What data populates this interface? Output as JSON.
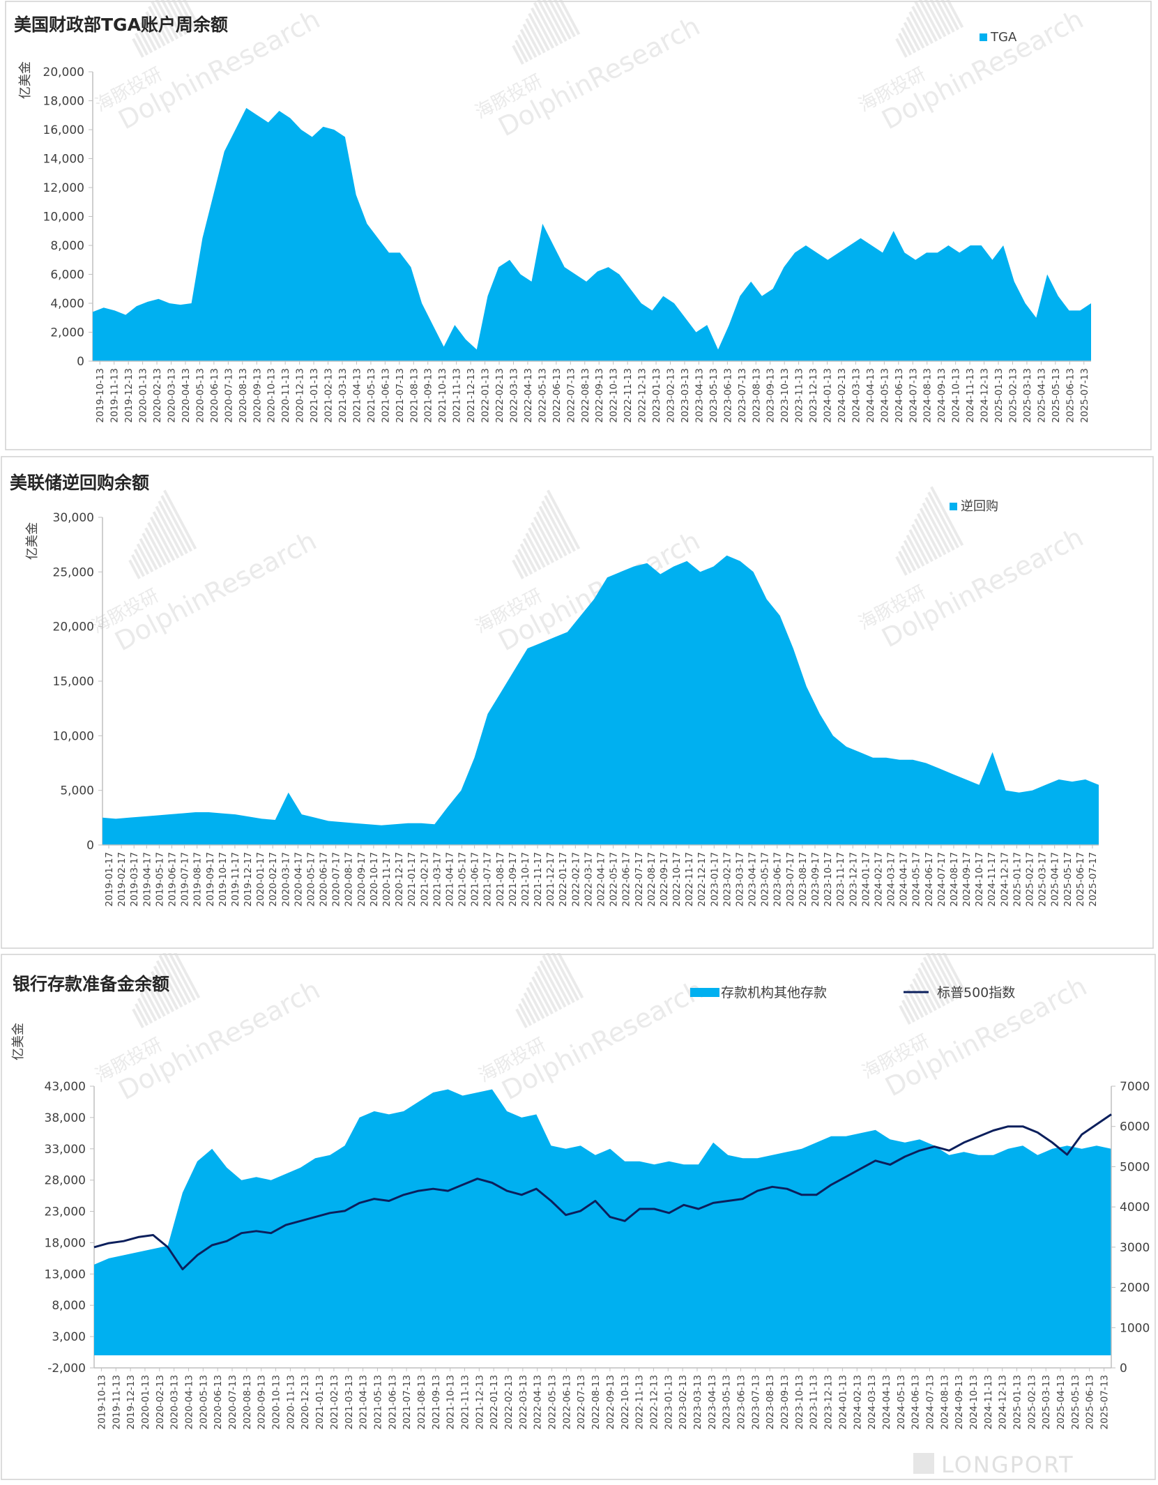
{
  "colors": {
    "fill": "#00B0F0",
    "line": "#0B1F5C",
    "axis": "#bfbfbf",
    "text": "#404040",
    "title": "#262626",
    "watermark": "#d9d9d9"
  },
  "watermark": {
    "cn": "海豚投研",
    "en": "DolphinResearch",
    "footer": "LONGPORT"
  },
  "chart_data": [
    {
      "type": "area",
      "title": "美国财政部TGA账户周余额",
      "ylabel": "亿美金",
      "legend": [
        "TGA"
      ],
      "legend_position": "top-right",
      "ylim": [
        0,
        20000
      ],
      "yticks": [
        0,
        2000,
        4000,
        6000,
        8000,
        10000,
        12000,
        14000,
        16000,
        18000,
        20000
      ],
      "ytick_labels": [
        "0",
        "2,000",
        "4,000",
        "6,000",
        "8,000",
        "10,000",
        "12,000",
        "14,000",
        "16,000",
        "18,000",
        "20,000"
      ],
      "xtick_labels": [
        "2019-10-13",
        "2019-11-13",
        "2019-12-13",
        "2020-01-13",
        "2020-02-13",
        "2020-03-13",
        "2020-04-13",
        "2020-05-13",
        "2020-06-13",
        "2020-07-13",
        "2020-08-13",
        "2020-09-13",
        "2020-10-13",
        "2020-11-13",
        "2020-12-13",
        "2021-01-13",
        "2021-02-13",
        "2021-03-13",
        "2021-04-13",
        "2021-05-13",
        "2021-06-13",
        "2021-07-13",
        "2021-08-13",
        "2021-09-13",
        "2021-10-13",
        "2021-11-13",
        "2021-12-13",
        "2022-01-13",
        "2022-02-13",
        "2022-03-13",
        "2022-04-13",
        "2022-05-13",
        "2022-06-13",
        "2022-07-13",
        "2022-08-13",
        "2022-09-13",
        "2022-10-13",
        "2022-11-13",
        "2022-12-13",
        "2023-01-13",
        "2023-02-13",
        "2023-03-13",
        "2023-04-13",
        "2023-05-13",
        "2023-06-13",
        "2023-07-13",
        "2023-08-13",
        "2023-09-13",
        "2023-10-13",
        "2023-11-13",
        "2023-12-13",
        "2024-01-13",
        "2024-02-13",
        "2024-03-13",
        "2024-04-13",
        "2024-05-13",
        "2024-06-13",
        "2024-07-13",
        "2024-08-13",
        "2024-09-13",
        "2024-10-13",
        "2024-11-13",
        "2024-12-13",
        "2025-01-13",
        "2025-02-13",
        "2025-03-13",
        "2025-04-13",
        "2025-05-13",
        "2025-06-13",
        "2025-07-13"
      ],
      "series": [
        {
          "name": "TGA",
          "values": [
            3400,
            3700,
            3500,
            3200,
            3800,
            4100,
            4300,
            4000,
            3900,
            4000,
            8500,
            11500,
            14500,
            16000,
            17500,
            17000,
            16500,
            17300,
            16800,
            16000,
            15500,
            16200,
            16000,
            15500,
            11500,
            9500,
            8500,
            7500,
            7500,
            6500,
            4000,
            2500,
            1000,
            2500,
            1500,
            800,
            4500,
            6500,
            7000,
            6000,
            5500,
            9500,
            8000,
            6500,
            6000,
            5500,
            6200,
            6500,
            6000,
            5000,
            4000,
            3500,
            4500,
            4000,
            3000,
            2000,
            2500,
            800,
            2500,
            4500,
            5500,
            4500,
            5000,
            6500,
            7500,
            8000,
            7500,
            7000,
            7500,
            8000,
            8500,
            8000,
            7500,
            9000,
            7500,
            7000,
            7500,
            7500,
            8000,
            7500,
            8000,
            8000,
            7000,
            8000,
            5500,
            4000,
            3000,
            6000,
            4500,
            3500,
            3500,
            4000
          ]
        }
      ]
    },
    {
      "type": "area",
      "title": "美联储逆回购余额",
      "ylabel": "亿美金",
      "legend": [
        "逆回购"
      ],
      "legend_position": "top-right",
      "ylim": [
        0,
        30000
      ],
      "yticks": [
        0,
        5000,
        10000,
        15000,
        20000,
        25000,
        30000
      ],
      "ytick_labels": [
        "0",
        "5,000",
        "10,000",
        "15,000",
        "20,000",
        "25,000",
        "30,000"
      ],
      "xtick_labels": [
        "2019-01-17",
        "2019-02-17",
        "2019-03-17",
        "2019-04-17",
        "2019-05-17",
        "2019-06-17",
        "2019-07-17",
        "2019-08-17",
        "2019-09-17",
        "2019-10-17",
        "2019-11-17",
        "2019-12-17",
        "2020-01-17",
        "2020-02-17",
        "2020-03-17",
        "2020-04-17",
        "2020-05-17",
        "2020-06-17",
        "2020-07-17",
        "2020-08-17",
        "2020-09-17",
        "2020-10-17",
        "2020-11-17",
        "2020-12-17",
        "2021-01-17",
        "2021-02-17",
        "2021-03-17",
        "2021-04-17",
        "2021-05-17",
        "2021-06-17",
        "2021-07-17",
        "2021-08-17",
        "2021-09-17",
        "2021-10-17",
        "2021-11-17",
        "2021-12-17",
        "2022-01-17",
        "2022-02-17",
        "2022-03-17",
        "2022-04-17",
        "2022-05-17",
        "2022-06-17",
        "2022-07-17",
        "2022-08-17",
        "2022-09-17",
        "2022-10-17",
        "2022-11-17",
        "2022-12-17",
        "2023-01-17",
        "2023-02-17",
        "2023-03-17",
        "2023-04-17",
        "2023-05-17",
        "2023-06-17",
        "2023-07-17",
        "2023-08-17",
        "2023-09-17",
        "2023-10-17",
        "2023-11-17",
        "2023-12-17",
        "2024-01-17",
        "2024-02-17",
        "2024-03-17",
        "2024-04-17",
        "2024-05-17",
        "2024-06-17",
        "2024-07-17",
        "2024-08-17",
        "2024-09-17",
        "2024-10-17",
        "2024-11-17",
        "2024-12-17",
        "2025-01-17",
        "2025-02-17",
        "2025-03-17",
        "2025-04-17",
        "2025-05-17",
        "2025-06-17",
        "2025-07-17"
      ],
      "series": [
        {
          "name": "逆回购",
          "values": [
            2500,
            2400,
            2500,
            2600,
            2700,
            2800,
            2900,
            3000,
            3000,
            2900,
            2800,
            2600,
            2400,
            2300,
            4800,
            2800,
            2500,
            2200,
            2100,
            2000,
            1900,
            1800,
            1900,
            2000,
            2000,
            1900,
            3500,
            5000,
            8000,
            12000,
            14000,
            16000,
            18000,
            18500,
            19000,
            19500,
            21000,
            22500,
            24500,
            25000,
            25500,
            25800,
            24800,
            25500,
            26000,
            25000,
            25500,
            26500,
            26000,
            25000,
            22500,
            21000,
            18000,
            14500,
            12000,
            10000,
            9000,
            8500,
            8000,
            8000,
            7800,
            7800,
            7500,
            7000,
            6500,
            6000,
            5500,
            8500,
            5000,
            4800,
            5000,
            5500,
            6000,
            5800,
            6000,
            5500
          ]
        }
      ]
    },
    {
      "type": "area+line",
      "title": "银行存款准备金余额",
      "ylabel": "亿美金",
      "legend": [
        "存款机构其他存款",
        "标普500指数"
      ],
      "legend_position": "top",
      "ylim": [
        -2000,
        43000
      ],
      "yticks": [
        -2000,
        3000,
        8000,
        13000,
        18000,
        23000,
        28000,
        33000,
        38000,
        43000
      ],
      "ytick_labels": [
        "-2,000",
        "3,000",
        "8,000",
        "13,000",
        "18,000",
        "23,000",
        "28,000",
        "33,000",
        "38,000",
        "43,000"
      ],
      "y2lim": [
        0,
        7000
      ],
      "y2ticks": [
        0,
        1000,
        2000,
        3000,
        4000,
        5000,
        6000,
        7000
      ],
      "y2tick_labels": [
        "0",
        "1000",
        "2000",
        "3000",
        "4000",
        "5000",
        "6000",
        "7000"
      ],
      "xtick_labels": [
        "2019-10-13",
        "2019-11-13",
        "2019-12-13",
        "2020-01-13",
        "2020-02-13",
        "2020-03-13",
        "2020-04-13",
        "2020-05-13",
        "2020-06-13",
        "2020-07-13",
        "2020-08-13",
        "2020-09-13",
        "2020-10-13",
        "2020-11-13",
        "2020-12-13",
        "2021-01-13",
        "2021-02-13",
        "2021-03-13",
        "2021-04-13",
        "2021-05-13",
        "2021-06-13",
        "2021-07-13",
        "2021-08-13",
        "2021-09-13",
        "2021-10-13",
        "2021-11-13",
        "2021-12-13",
        "2022-01-13",
        "2022-02-13",
        "2022-03-13",
        "2022-04-13",
        "2022-05-13",
        "2022-06-13",
        "2022-07-13",
        "2022-08-13",
        "2022-09-13",
        "2022-10-13",
        "2022-11-13",
        "2022-12-13",
        "2023-01-13",
        "2023-02-13",
        "2023-03-13",
        "2023-04-13",
        "2023-05-13",
        "2023-06-13",
        "2023-07-13",
        "2023-08-13",
        "2023-09-13",
        "2023-10-13",
        "2023-11-13",
        "2023-12-13",
        "2024-01-13",
        "2024-02-13",
        "2024-03-13",
        "2024-04-13",
        "2024-05-13",
        "2024-06-13",
        "2024-07-13",
        "2024-08-13",
        "2024-09-13",
        "2024-10-13",
        "2024-11-13",
        "2024-12-13",
        "2025-01-13",
        "2025-02-13",
        "2025-03-13",
        "2025-04-13",
        "2025-05-13",
        "2025-06-13",
        "2025-07-13"
      ],
      "series": [
        {
          "name": "存款机构其他存款",
          "axis": "left",
          "values": [
            14500,
            15500,
            16000,
            16500,
            17000,
            17500,
            26000,
            31000,
            33000,
            30000,
            28000,
            28500,
            28000,
            29000,
            30000,
            31500,
            32000,
            33500,
            38000,
            39000,
            38500,
            39000,
            40500,
            42000,
            42500,
            41500,
            42000,
            42500,
            39000,
            38000,
            38500,
            33500,
            33000,
            33500,
            32000,
            33000,
            31000,
            31000,
            30500,
            31000,
            30500,
            30500,
            34000,
            32000,
            31500,
            31500,
            32000,
            32500,
            33000,
            34000,
            35000,
            35000,
            35500,
            36000,
            34500,
            34000,
            34500,
            33500,
            32000,
            32500,
            32000,
            32000,
            33000,
            33500,
            32000,
            33000,
            33500,
            33000,
            33500,
            33000
          ]
        },
        {
          "name": "标普500指数",
          "axis": "right",
          "values": [
            3000,
            3100,
            3150,
            3250,
            3300,
            3000,
            2450,
            2800,
            3050,
            3150,
            3350,
            3400,
            3350,
            3550,
            3650,
            3750,
            3850,
            3900,
            4100,
            4200,
            4150,
            4300,
            4400,
            4450,
            4400,
            4550,
            4700,
            4600,
            4400,
            4300,
            4450,
            4150,
            3800,
            3900,
            4150,
            3750,
            3650,
            3950,
            3950,
            3850,
            4050,
            3950,
            4100,
            4150,
            4200,
            4400,
            4500,
            4450,
            4300,
            4300,
            4550,
            4750,
            4950,
            5150,
            5050,
            5250,
            5400,
            5500,
            5400,
            5600,
            5750,
            5900,
            6000,
            6000,
            5850,
            5600,
            5300,
            5800,
            6050,
            6300
          ]
        }
      ]
    }
  ]
}
